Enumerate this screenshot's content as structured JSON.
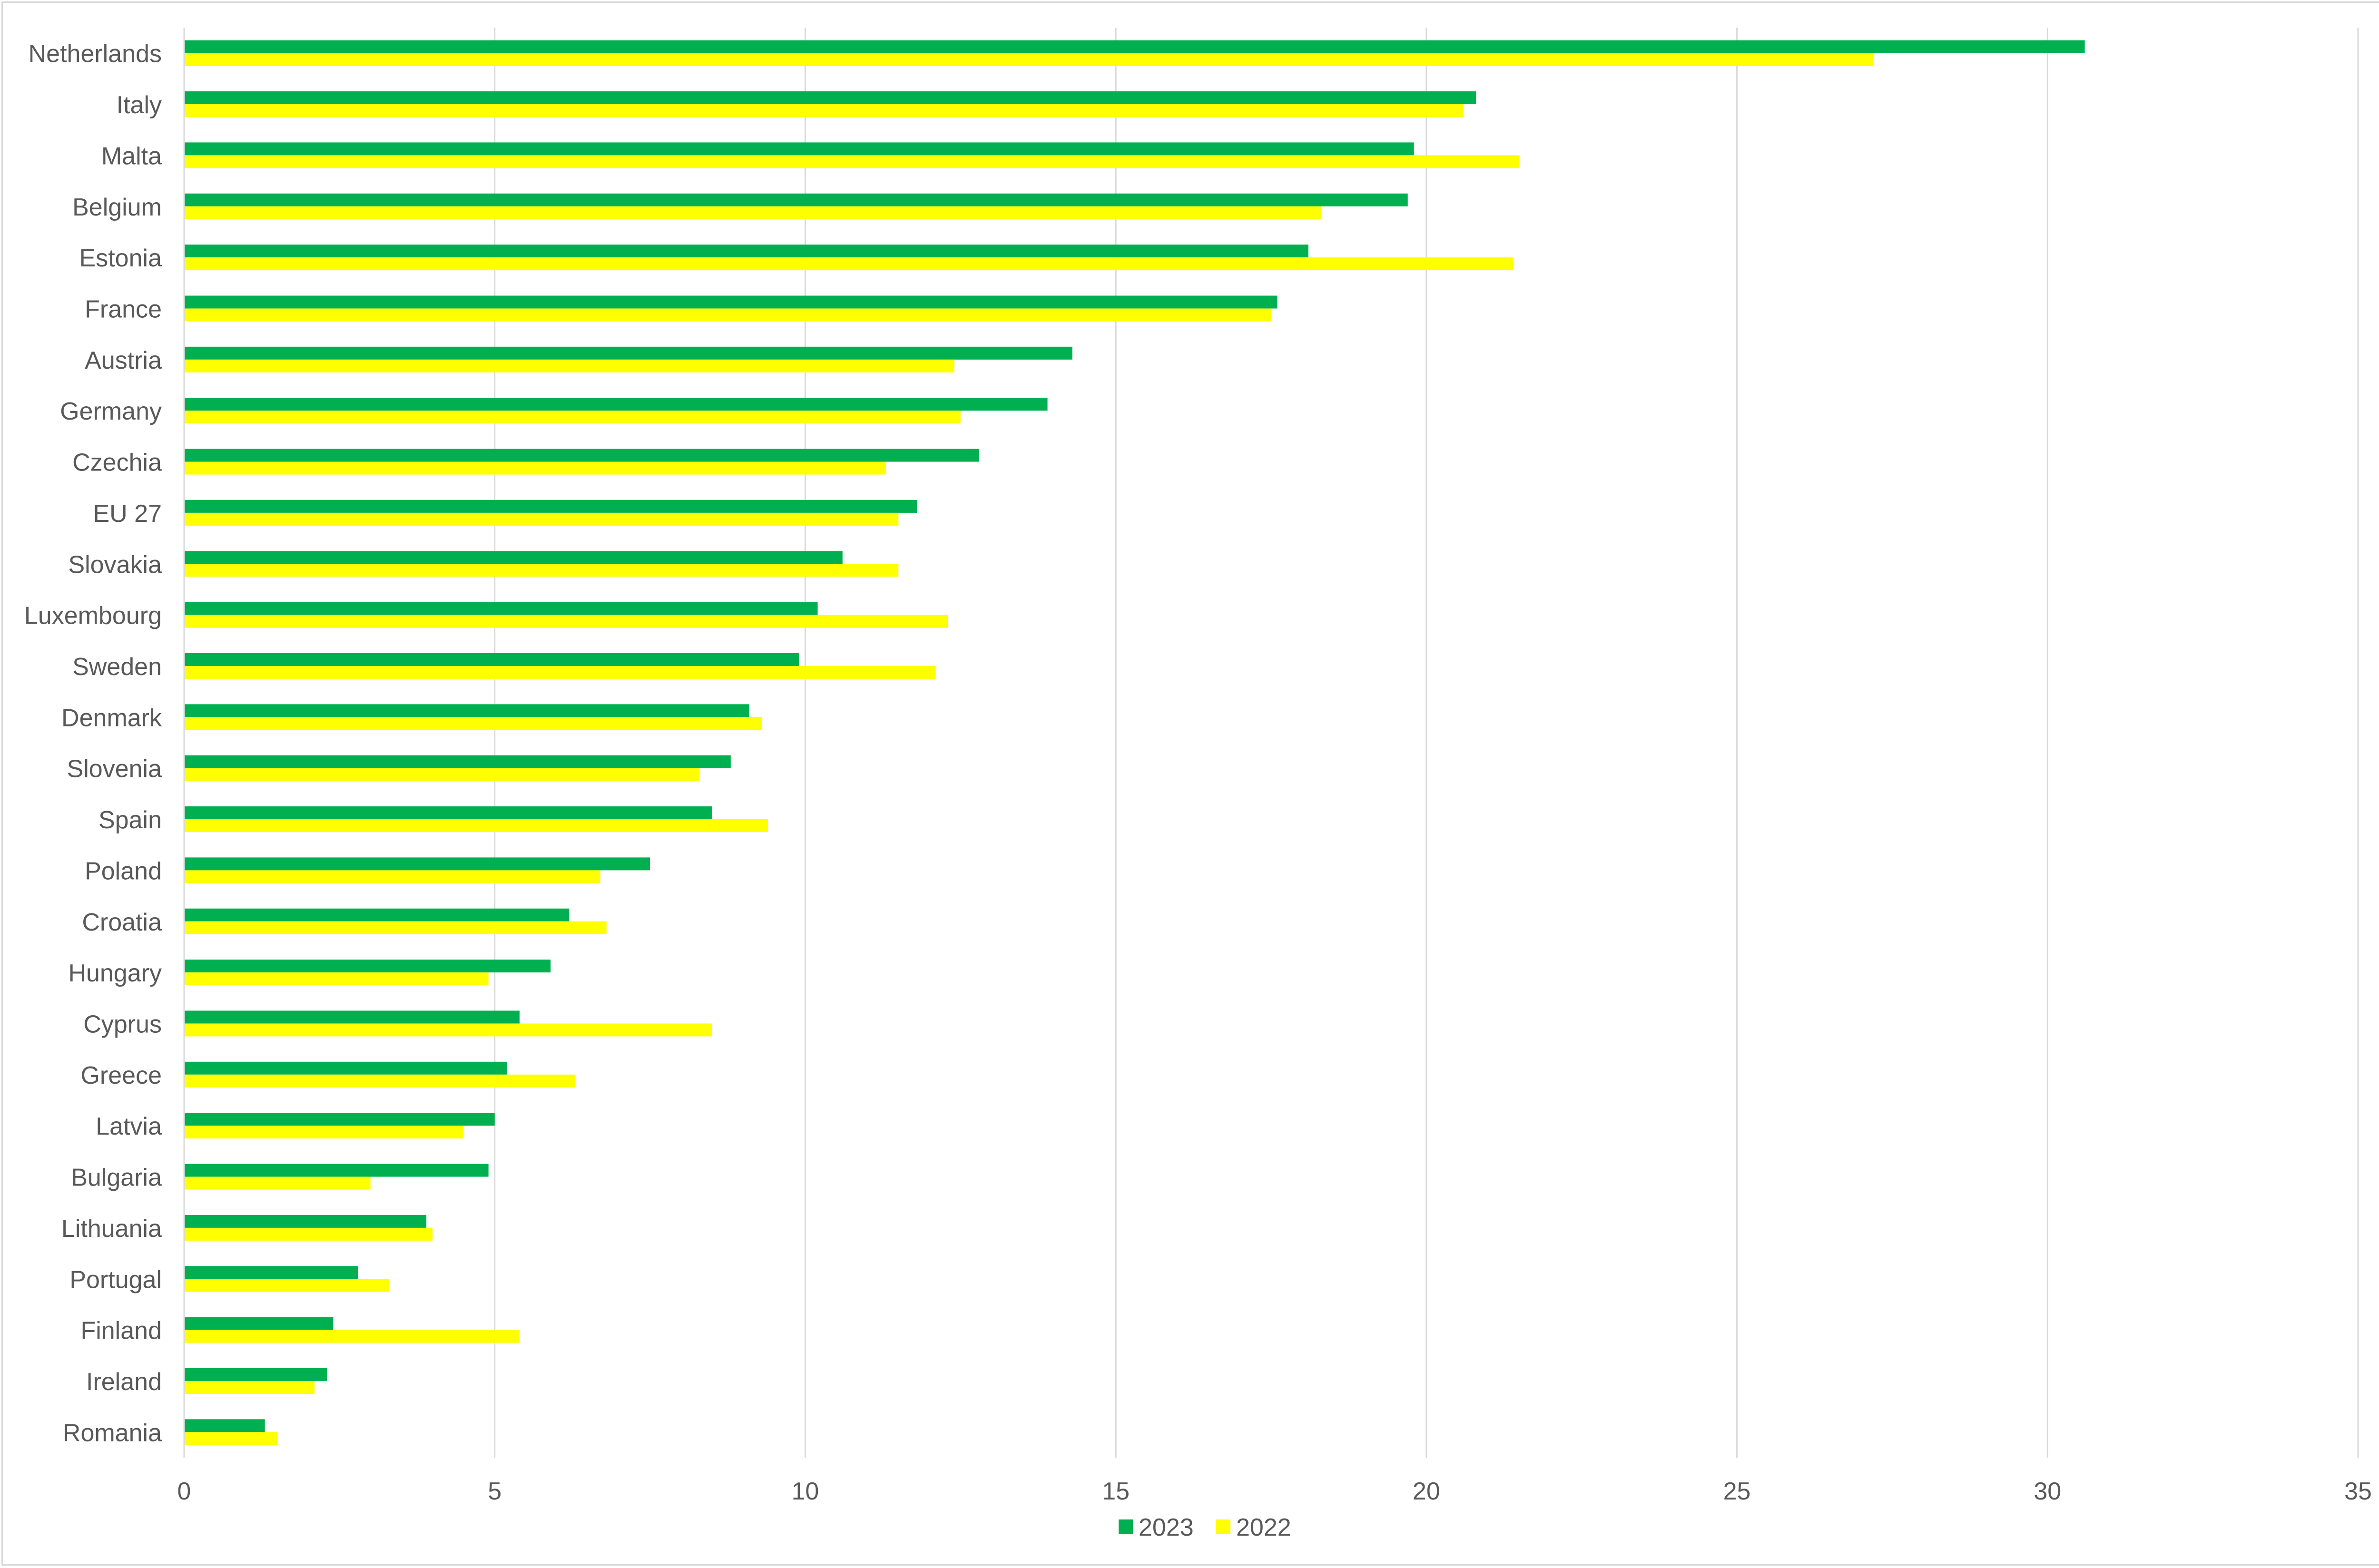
{
  "chart_data": {
    "type": "bar",
    "orientation": "horizontal",
    "title": "",
    "xlabel": "",
    "ylabel": "",
    "xlim": [
      0,
      35
    ],
    "x_ticks": [
      0,
      5,
      10,
      15,
      20,
      25,
      30,
      35
    ],
    "grid": true,
    "legend_position": "bottom",
    "categories": [
      "Netherlands",
      "Italy",
      "Malta",
      "Belgium",
      "Estonia",
      "France",
      "Austria",
      "Germany",
      "Czechia",
      "EU 27",
      "Slovakia",
      "Luxembourg",
      "Sweden",
      "Denmark",
      "Slovenia",
      "Spain",
      "Poland",
      "Croatia",
      "Hungary",
      "Cyprus",
      "Greece",
      "Latvia",
      "Bulgaria",
      "Lithuania",
      "Portugal",
      "Finland",
      "Ireland",
      "Romania"
    ],
    "series": [
      {
        "name": "2023",
        "color": "#00b050",
        "values": [
          30.6,
          20.8,
          19.8,
          19.7,
          18.1,
          17.6,
          14.3,
          13.9,
          12.8,
          11.8,
          10.6,
          10.2,
          9.9,
          9.1,
          8.8,
          8.5,
          7.5,
          6.2,
          5.9,
          5.4,
          5.2,
          5.0,
          4.9,
          3.9,
          2.8,
          2.4,
          2.3,
          1.3
        ]
      },
      {
        "name": "2022",
        "color": "#ffff00",
        "values": [
          27.2,
          20.6,
          21.5,
          18.3,
          21.4,
          17.5,
          12.4,
          12.5,
          11.3,
          11.5,
          11.5,
          12.3,
          12.1,
          9.3,
          8.3,
          9.4,
          6.7,
          6.8,
          4.9,
          8.5,
          6.3,
          4.5,
          3.0,
          4.0,
          3.3,
          5.4,
          2.1,
          1.5
        ]
      }
    ]
  }
}
